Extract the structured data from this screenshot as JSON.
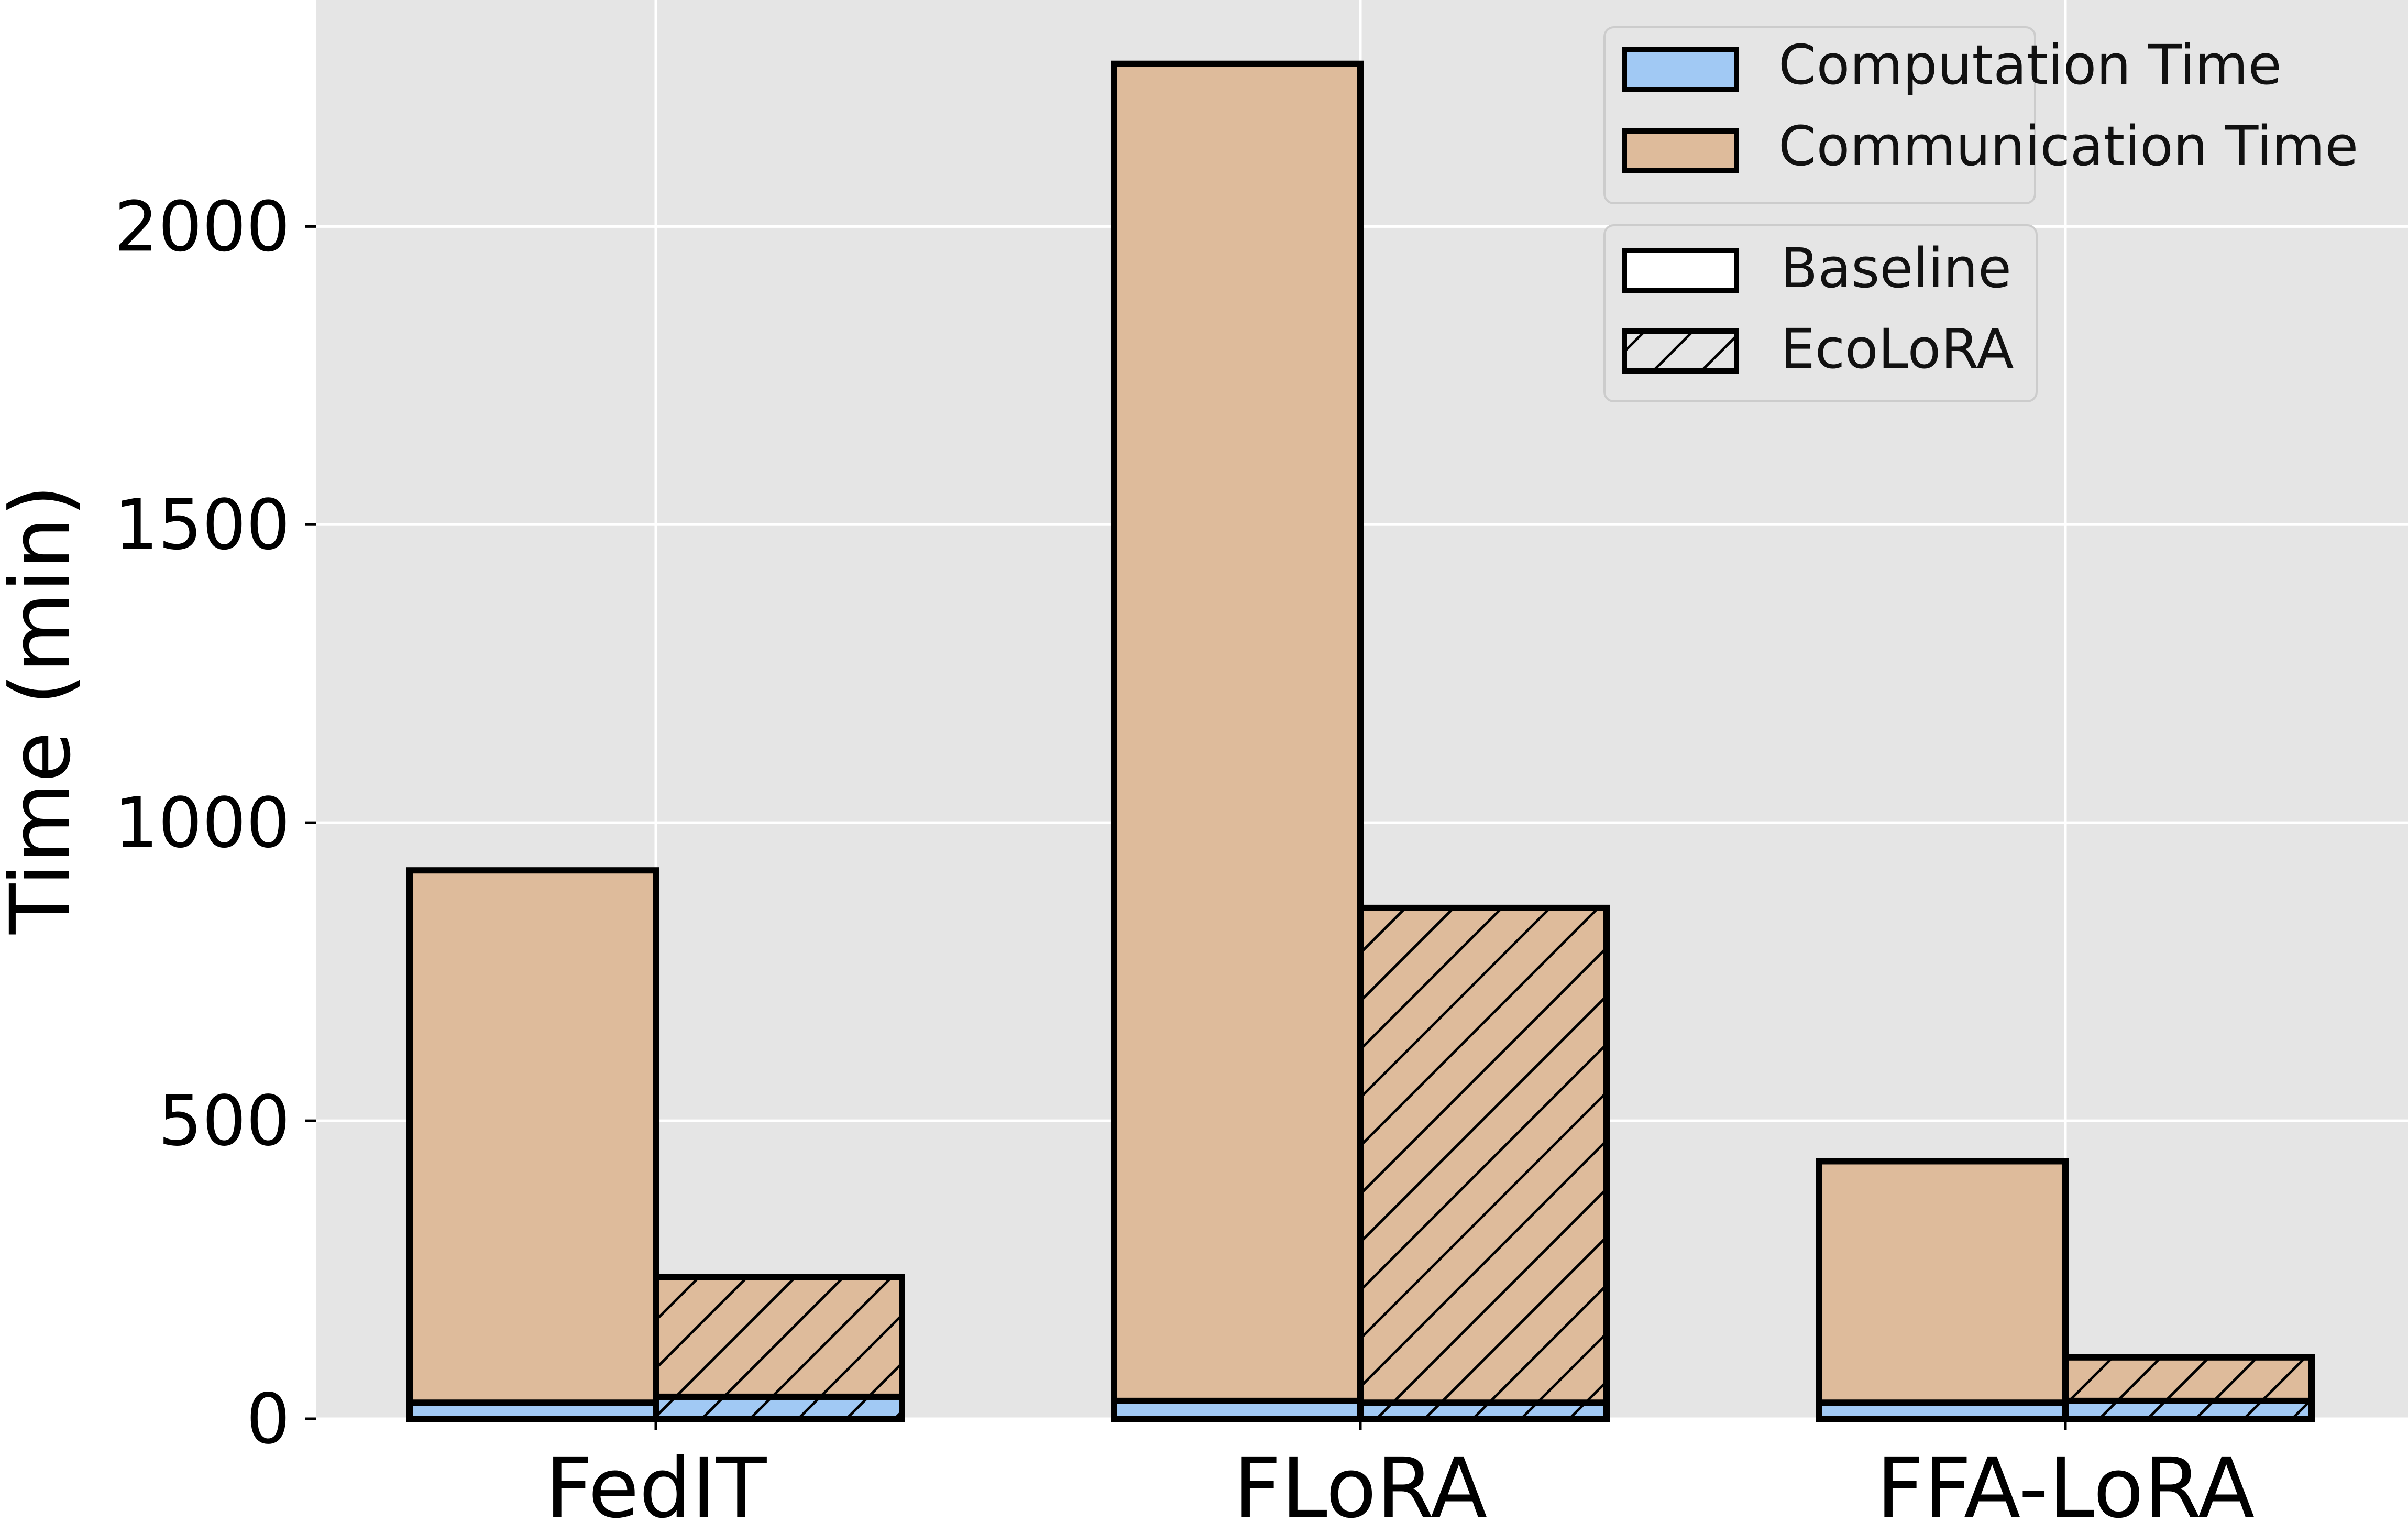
{
  "chart_data": {
    "type": "bar",
    "stacked": true,
    "title": "",
    "xlabel": "",
    "ylabel": "Time (min)",
    "ylim": [
      0,
      2380
    ],
    "yticks": [
      0,
      500,
      1000,
      1500,
      2000
    ],
    "ytick_labels": [
      "0",
      "500",
      "1000",
      "1500",
      "2000"
    ],
    "grid": true,
    "categories": [
      "FedIT",
      "FLoRA",
      "FFA-LoRA"
    ],
    "variants": [
      "Baseline",
      "EcoLoRA"
    ],
    "series": [
      {
        "name": "Computation Time",
        "color": "#a1c9f4",
        "values": {
          "Baseline": [
            27,
            30,
            27
          ],
          "EcoLoRA": [
            37,
            27,
            30
          ]
        }
      },
      {
        "name": "Communication Time",
        "color": "#debb9b",
        "values": {
          "Baseline": [
            893,
            2243,
            405
          ],
          "EcoLoRA": [
            201,
            830,
            73
          ]
        }
      }
    ],
    "legend": {
      "placement": "top-right",
      "series_entries": [
        "Computation Time",
        "Communication Time"
      ],
      "variant_entries": [
        {
          "label": "Baseline",
          "pattern": "none"
        },
        {
          "label": "EcoLoRA",
          "pattern": "hatch"
        }
      ]
    }
  }
}
